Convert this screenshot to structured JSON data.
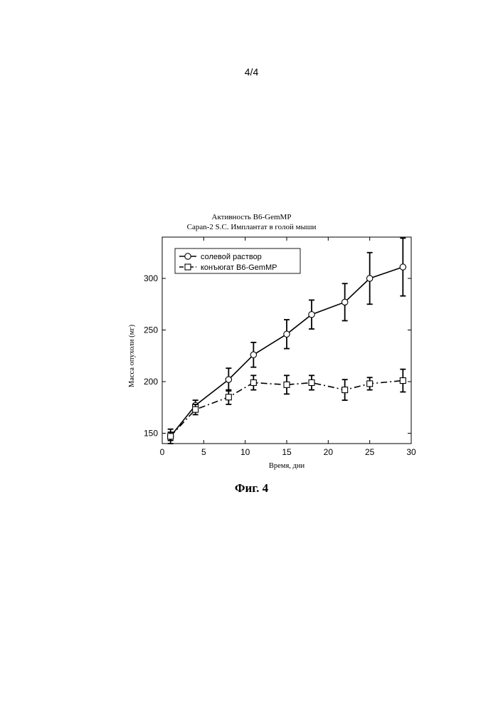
{
  "page": {
    "number": "4/4",
    "figure_caption": "Фиг. 4"
  },
  "chart_data": {
    "type": "line",
    "title": "Активность B6-GemMP",
    "subtitle": "Capan-2 S.C. Имплантат в голой мыши",
    "xlabel": "Время, дни",
    "ylabel": "Масса опухоли (мг)",
    "xlim": [
      0,
      30
    ],
    "ylim": [
      140,
      340
    ],
    "xticks": [
      0,
      5,
      10,
      15,
      20,
      25,
      30
    ],
    "yticks": [
      150,
      200,
      250,
      300
    ],
    "grid": false,
    "legend_position": "top-left",
    "series": [
      {
        "name": "солевой раствор",
        "marker": "circle",
        "line_style": "solid",
        "color": "#000000",
        "points": [
          {
            "x": 1,
            "y": 147,
            "err": 7
          },
          {
            "x": 4,
            "y": 177,
            "err": 5
          },
          {
            "x": 8,
            "y": 202,
            "err": 11
          },
          {
            "x": 11,
            "y": 226,
            "err": 12
          },
          {
            "x": 15,
            "y": 246,
            "err": 14
          },
          {
            "x": 18,
            "y": 265,
            "err": 14
          },
          {
            "x": 22,
            "y": 277,
            "err": 18
          },
          {
            "x": 25,
            "y": 300,
            "err": 25
          },
          {
            "x": 29,
            "y": 311,
            "err": 28
          }
        ]
      },
      {
        "name": "конъюгат B6-GemMP",
        "marker": "square",
        "line_style": "dashdot",
        "color": "#000000",
        "points": [
          {
            "x": 1,
            "y": 147,
            "err": 4
          },
          {
            "x": 4,
            "y": 173,
            "err": 5
          },
          {
            "x": 8,
            "y": 185,
            "err": 7
          },
          {
            "x": 11,
            "y": 199,
            "err": 7
          },
          {
            "x": 15,
            "y": 197,
            "err": 9
          },
          {
            "x": 18,
            "y": 199,
            "err": 7
          },
          {
            "x": 22,
            "y": 192,
            "err": 10
          },
          {
            "x": 25,
            "y": 198,
            "err": 6
          },
          {
            "x": 29,
            "y": 201,
            "err": 11
          }
        ]
      }
    ]
  }
}
